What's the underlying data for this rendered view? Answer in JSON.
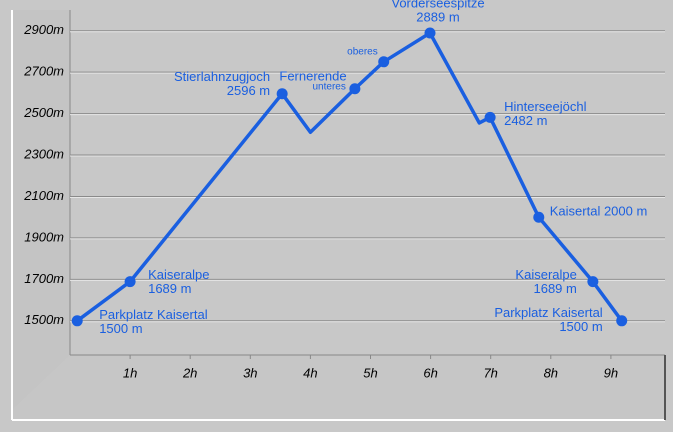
{
  "chart_data": {
    "type": "line",
    "x": [
      0.12,
      1.0,
      3.53,
      4.0,
      4.74,
      5.22,
      5.99,
      6.81,
      6.99,
      7.8,
      8.7,
      9.18
    ],
    "series": [
      {
        "color": "#1a5fe0",
        "values": [
          1500,
          1689,
          2596,
          2410,
          2620,
          2750,
          2889,
          2455,
          2482,
          2000,
          1689,
          1500
        ],
        "markers": [
          true,
          true,
          true,
          false,
          true,
          true,
          true,
          false,
          true,
          true,
          true,
          true
        ]
      }
    ],
    "point_labels": [
      [
        "Parkplatz Kaisertal",
        "1500 m"
      ],
      [
        "Kaiseralpe",
        "1689 m"
      ],
      [
        "Stierlahnzugjoch",
        "2596 m"
      ],
      null,
      [
        "unteres"
      ],
      [
        "oberes"
      ],
      [
        "Vorderseespitze",
        "2889 m"
      ],
      null,
      [
        "Hinterseejöchl",
        "2482 m"
      ],
      [
        "Kaisertal 2000 m"
      ],
      [
        "Kaiseralpe",
        "1689 m"
      ],
      [
        "Parkplatz Kaisertal",
        "1500 m"
      ]
    ],
    "annotations": [
      "Fernerende"
    ],
    "xlim": [
      0,
      9.5
    ],
    "xticks": [
      {
        "value": 1,
        "label": "1h"
      },
      {
        "value": 2,
        "label": "2h"
      },
      {
        "value": 3,
        "label": "3h"
      },
      {
        "value": 4,
        "label": "4h"
      },
      {
        "value": 5,
        "label": "5h"
      },
      {
        "value": 6,
        "label": "6h"
      },
      {
        "value": 7,
        "label": "7h"
      },
      {
        "value": 8,
        "label": "8h"
      },
      {
        "value": 9,
        "label": "9h"
      }
    ],
    "ylim": [
      1335,
      3000
    ],
    "yticks": [
      {
        "value": 1500,
        "label": "1500m"
      },
      {
        "value": 1700,
        "label": "1700m"
      },
      {
        "value": 1900,
        "label": "1900m"
      },
      {
        "value": 2100,
        "label": "2100m"
      },
      {
        "value": 2300,
        "label": "2300m"
      },
      {
        "value": 2500,
        "label": "2500m"
      },
      {
        "value": 2700,
        "label": "2700m"
      },
      {
        "value": 2900,
        "label": "2900m"
      }
    ],
    "grid": true
  }
}
